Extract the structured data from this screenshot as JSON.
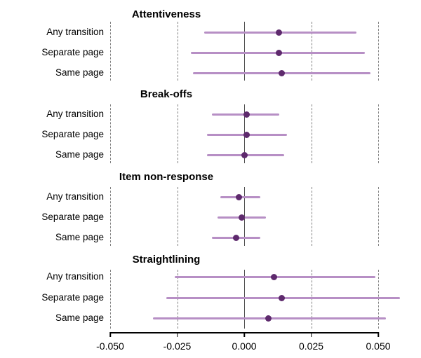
{
  "colors": {
    "ci_line": "#b78fc5",
    "point": "#5e2a6d",
    "zero_line": "#4d4d4d",
    "gridline": "#808080",
    "axis": "#000000",
    "background": "#ffffff"
  },
  "chart_data": {
    "type": "scatter",
    "subtype": "forest-plot-dot-interval",
    "title": "",
    "xlabel": "",
    "ylabel": "",
    "x_axis": {
      "ticks": [
        -0.05,
        -0.025,
        0,
        0.025,
        0.05
      ],
      "tick_labels": [
        "-0.050",
        "-0.025",
        "0.000",
        "0.025",
        "0.050"
      ],
      "range_shown": [
        -0.05,
        0.05
      ],
      "zero_reference_line": true,
      "gridlines": "dashed-vertical"
    },
    "legend": null,
    "panels": [
      {
        "title": "Attentiveness",
        "rows": [
          {
            "label": "Any transition",
            "estimate": 0.013,
            "ci_low": -0.015,
            "ci_high": 0.042
          },
          {
            "label": "Separate page",
            "estimate": 0.013,
            "ci_low": -0.02,
            "ci_high": 0.045
          },
          {
            "label": "Same page",
            "estimate": 0.014,
            "ci_low": -0.019,
            "ci_high": 0.047
          }
        ]
      },
      {
        "title": "Break-offs",
        "rows": [
          {
            "label": "Any transition",
            "estimate": 0.001,
            "ci_low": -0.012,
            "ci_high": 0.013
          },
          {
            "label": "Separate page",
            "estimate": 0.001,
            "ci_low": -0.014,
            "ci_high": 0.016
          },
          {
            "label": "Same page",
            "estimate": 0.0,
            "ci_low": -0.014,
            "ci_high": 0.015
          }
        ]
      },
      {
        "title": "Item non-response",
        "rows": [
          {
            "label": "Any transition",
            "estimate": -0.002,
            "ci_low": -0.009,
            "ci_high": 0.006
          },
          {
            "label": "Separate page",
            "estimate": -0.001,
            "ci_low": -0.01,
            "ci_high": 0.008
          },
          {
            "label": "Same page",
            "estimate": -0.003,
            "ci_low": -0.012,
            "ci_high": 0.006
          }
        ]
      },
      {
        "title": "Straightlining",
        "rows": [
          {
            "label": "Any transition",
            "estimate": 0.011,
            "ci_low": -0.026,
            "ci_high": 0.049
          },
          {
            "label": "Separate page",
            "estimate": 0.014,
            "ci_low": -0.029,
            "ci_high": 0.058
          },
          {
            "label": "Same page",
            "estimate": 0.009,
            "ci_low": -0.034,
            "ci_high": 0.053
          }
        ]
      }
    ]
  }
}
